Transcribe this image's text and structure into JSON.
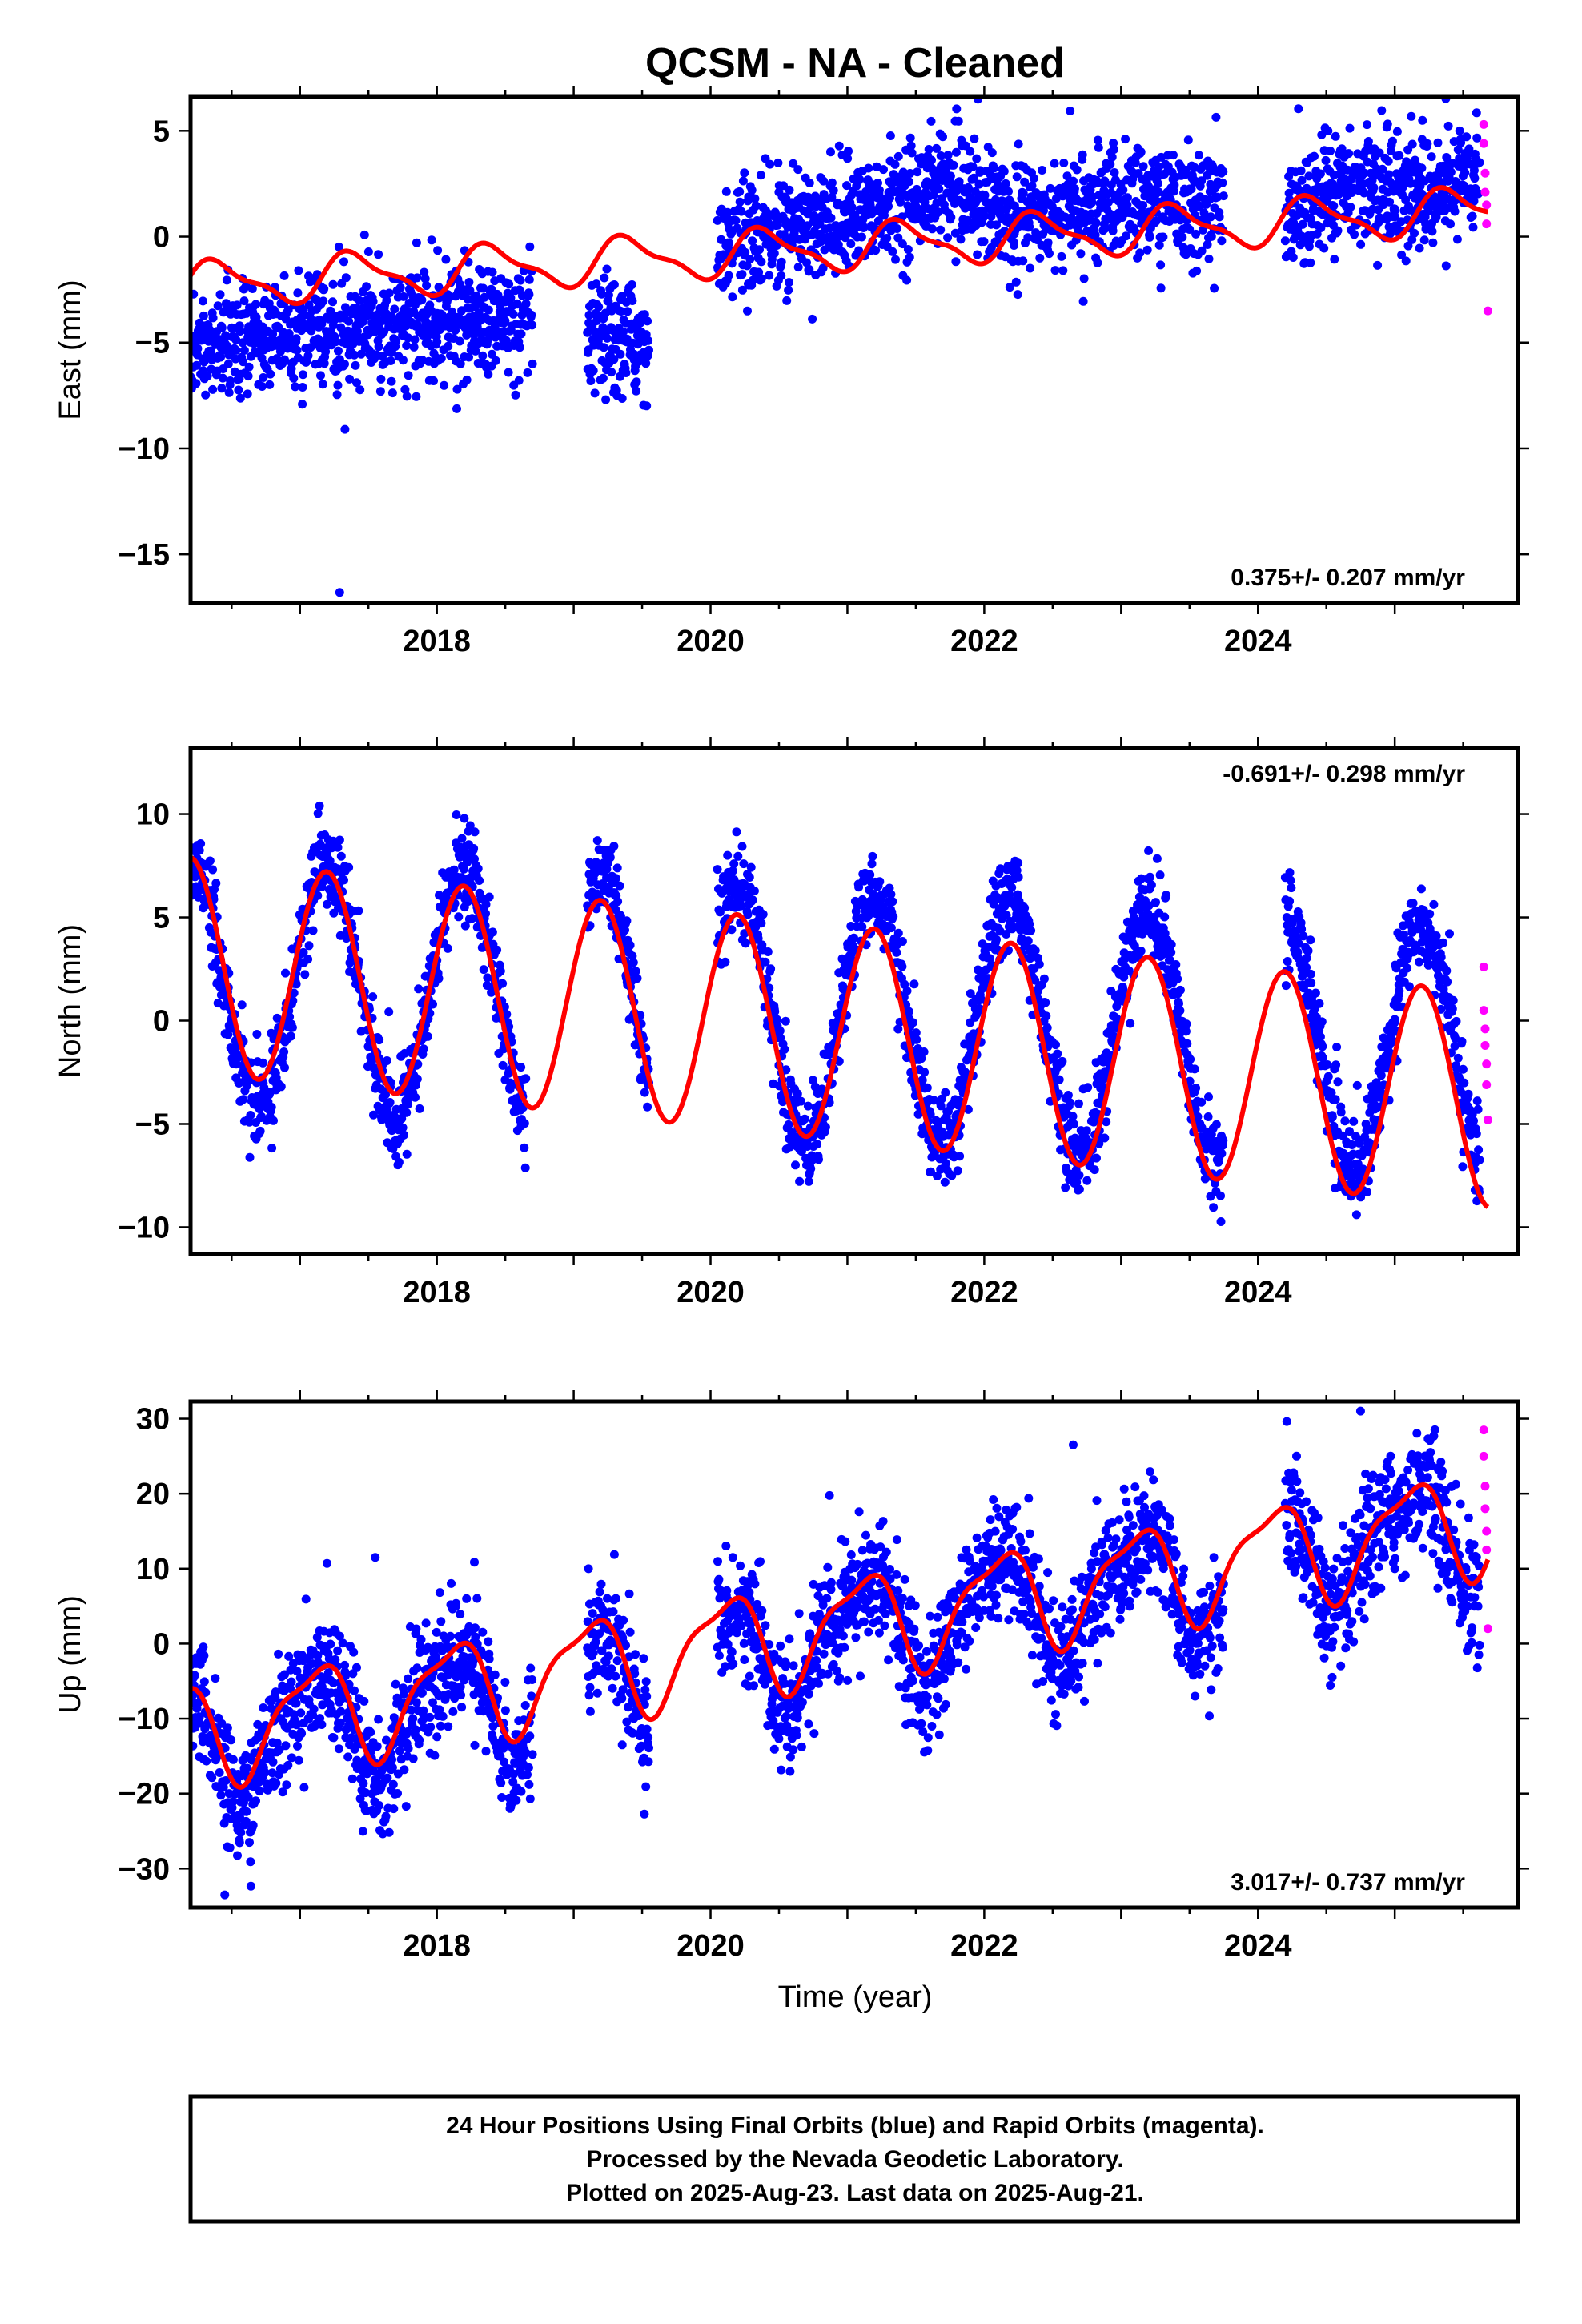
{
  "title": "QCSM  - NA - Cleaned",
  "xlabel": "Time (year)",
  "footer": {
    "line1": "24 Hour Positions Using Final Orbits (blue) and Rapid Orbits (magenta).",
    "line2": "Processed by the Nevada Geodetic Laboratory.",
    "line3": "Plotted on 2025-Aug-23. Last data on 2025-Aug-21."
  },
  "colors": {
    "final_orbits": "#0000ff",
    "rapid_orbits": "#ff00ff",
    "model": "#ff0000",
    "frame": "#000000"
  },
  "chart_data": [
    {
      "type": "scatter",
      "ylabel": "East (mm)",
      "rate_label": "0.375+/- 0.207 mm/yr",
      "xlim": [
        2016.2,
        2025.9
      ],
      "ylim": [
        -17.3,
        6.6
      ],
      "xticks": [
        2018,
        2020,
        2022,
        2024
      ],
      "yticks": [
        5,
        0,
        -5,
        -10,
        -15
      ],
      "ytick_labels": [
        "5",
        "0",
        "−5",
        "−10",
        "−15"
      ],
      "model": {
        "label": "fit",
        "a": -2.3,
        "rate": 0.375,
        "amp": 1.0,
        "phase": 0.3,
        "amp2": 0.35,
        "phase2": 0.5
      },
      "data_coverage": [
        [
          2016.2,
          2018.7
        ],
        [
          2019.1,
          2019.55
        ],
        [
          2020.05,
          2023.75
        ],
        [
          2024.2,
          2025.62
        ]
      ],
      "data_trend": [
        [
          2016.2,
          -5.2
        ],
        [
          2017.0,
          -4.5
        ],
        [
          2018.0,
          -4.0
        ],
        [
          2018.7,
          -4.2
        ],
        [
          2019.1,
          -5.0
        ],
        [
          2019.55,
          -4.8
        ],
        [
          2020.05,
          -0.5
        ],
        [
          2020.3,
          0.0
        ],
        [
          2021.0,
          0.8
        ],
        [
          2021.7,
          2.5
        ],
        [
          2022.3,
          1.0
        ],
        [
          2023.0,
          1.6
        ],
        [
          2023.75,
          1.5
        ],
        [
          2024.2,
          0.8
        ],
        [
          2024.7,
          2.5
        ],
        [
          2025.3,
          2.0
        ],
        [
          2025.62,
          3.0
        ]
      ],
      "scatter_sd": 1.3,
      "rapid_points": [
        [
          2025.65,
          5.3
        ],
        [
          2025.65,
          4.4
        ],
        [
          2025.66,
          3.0
        ],
        [
          2025.66,
          2.1
        ],
        [
          2025.67,
          1.5
        ],
        [
          2025.67,
          0.6
        ],
        [
          2025.68,
          -3.5
        ]
      ],
      "outliers": [
        [
          2017.29,
          -16.8
        ]
      ]
    },
    {
      "type": "scatter",
      "ylabel": "North (mm)",
      "rate_label": "-0.691+/- 0.298 mm/yr",
      "xlim": [
        2016.2,
        2025.9
      ],
      "ylim": [
        -11.3,
        13.2
      ],
      "xticks": [
        2018,
        2020,
        2022,
        2024
      ],
      "yticks": [
        10,
        5,
        0,
        -5,
        -10
      ],
      "ytick_labels": [
        "10",
        "5",
        "0",
        "−5",
        "−10"
      ],
      "model": {
        "label": "fit",
        "a": 2.7,
        "rate": -0.691,
        "amp": 5.2,
        "phase": 1.6,
        "amp2": 0,
        "phase2": 0
      },
      "data_coverage": [
        [
          2016.2,
          2018.65
        ],
        [
          2019.1,
          2019.55
        ],
        [
          2020.05,
          2023.75
        ],
        [
          2024.2,
          2025.62
        ]
      ],
      "data_trend": [
        [
          2016.2,
          2.0
        ],
        [
          2025.62,
          -1.5
        ]
      ],
      "data_season_amp": 6.0,
      "scatter_sd": 1.1,
      "rapid_points": [
        [
          2025.65,
          2.6
        ],
        [
          2025.65,
          0.5
        ],
        [
          2025.66,
          -0.4
        ],
        [
          2025.66,
          -1.2
        ],
        [
          2025.67,
          -2.1
        ],
        [
          2025.67,
          -3.1
        ],
        [
          2025.68,
          -4.8
        ]
      ],
      "outliers": []
    },
    {
      "type": "scatter",
      "ylabel": "Up (mm)",
      "rate_label": "3.017+/- 0.737 mm/yr",
      "xlim": [
        2016.2,
        2025.9
      ],
      "ylim": [
        -35.2,
        32.3
      ],
      "xticks": [
        2018,
        2020,
        2022,
        2024
      ],
      "yticks": [
        30,
        20,
        10,
        0,
        -10,
        -20,
        -30
      ],
      "ytick_labels": [
        "30",
        "20",
        "10",
        "0",
        "−10",
        "−20",
        "−30"
      ],
      "model": {
        "label": "fit",
        "a": -12.0,
        "rate": 3.017,
        "amp": 6.5,
        "phase": 2.2,
        "amp2": 2.0,
        "phase2": 0.4
      },
      "data_coverage": [
        [
          2016.2,
          2018.7
        ],
        [
          2019.1,
          2019.55
        ],
        [
          2020.05,
          2023.75
        ],
        [
          2024.2,
          2025.62
        ]
      ],
      "data_trend": [
        [
          2016.2,
          -14.0
        ],
        [
          2025.62,
          15.5
        ]
      ],
      "data_season_amp": 7.0,
      "scatter_sd": 4.0,
      "rapid_points": [
        [
          2025.65,
          28.5
        ],
        [
          2025.65,
          25.0
        ],
        [
          2025.66,
          21.0
        ],
        [
          2025.66,
          18.0
        ],
        [
          2025.67,
          15.0
        ],
        [
          2025.67,
          12.5
        ],
        [
          2025.68,
          2.0
        ]
      ],
      "outliers": [
        [
          2016.45,
          -33.5
        ],
        [
          2017.55,
          11.5
        ],
        [
          2022.65,
          26.5
        ],
        [
          2024.75,
          31.0
        ]
      ]
    }
  ]
}
